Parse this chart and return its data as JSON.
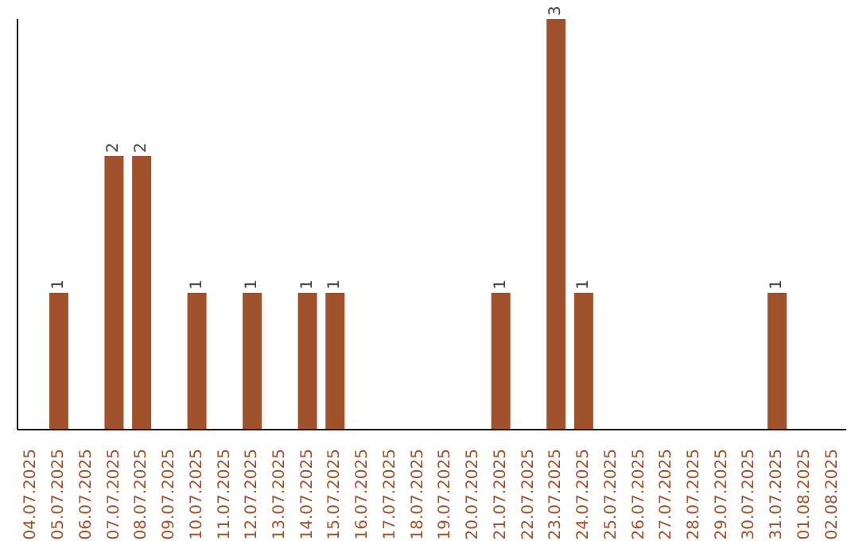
{
  "chart_data": {
    "type": "bar",
    "tick_labels": "x",
    "categories": [
      "04.07.2025",
      "05.07.2025",
      "06.07.2025",
      "07.07.2025",
      "08.07.2025",
      "09.07.2025",
      "10.07.2025",
      "11.07.2025",
      "12.07.2025",
      "13.07.2025",
      "14.07.2025",
      "15.07.2025",
      "16.07.2025",
      "17.07.2025",
      "18.07.2025",
      "19.07.2025",
      "20.07.2025",
      "21.07.2025",
      "22.07.2025",
      "23.07.2025",
      "24.07.2025",
      "25.07.2025",
      "26.07.2025",
      "27.07.2025",
      "28.07.2025",
      "29.07.2025",
      "30.07.2025",
      "31.07.2025",
      "01.08.2025",
      "02.08.2025"
    ],
    "values": [
      0,
      1,
      0,
      2,
      2,
      0,
      1,
      0,
      1,
      0,
      1,
      1,
      0,
      0,
      0,
      0,
      0,
      1,
      0,
      3,
      1,
      0,
      0,
      0,
      0,
      0,
      0,
      1,
      0,
      0
    ],
    "value_labels": [
      null,
      "1",
      null,
      "2",
      "2",
      null,
      "1",
      null,
      "1",
      null,
      "1",
      "1",
      null,
      null,
      null,
      null,
      null,
      "1",
      null,
      "3",
      "1",
      null,
      null,
      null,
      null,
      null,
      null,
      "1",
      null,
      null
    ],
    "color": "#a0522d"
  }
}
